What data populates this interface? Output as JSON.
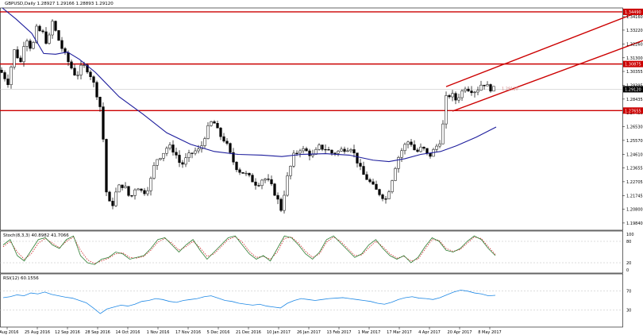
{
  "chart_data": [
    {
      "type": "candlestick",
      "title": "GBPUSD,Daily  1.28927 1.29166 1.28893 1.29120",
      "instrument": "GBPUSD",
      "timeframe": "Daily",
      "ohlc_header": [
        "1.28927",
        "1.29166",
        "1.28893",
        "1.29120"
      ],
      "current_price": "1.29120",
      "ylim": [
        1.1934,
        1.3476
      ],
      "y_ticks": [
        "1.34160",
        "1.33220",
        "1.32260",
        "1.31300",
        "1.30355",
        "1.29395",
        "1.28435",
        "1.27480",
        "1.26530",
        "1.25570",
        "1.24610",
        "1.23655",
        "1.22705",
        "1.21745",
        "1.20800",
        "1.19840"
      ],
      "x_ticks": [
        "9 Aug 2016",
        "25 Aug 2016",
        "12 Sep 2016",
        "28 Sep 2016",
        "14 Oct 2016",
        "1 Nov 2016",
        "17 Nov 2016",
        "5 Dec 2016",
        "21 Dec 2016",
        "10 Jan 2017",
        "26 Jan 2017",
        "13 Feb 2017",
        "1 Mar 2017",
        "17 Mar 2017",
        "4 Apr 2017",
        "20 Apr 2017",
        "8 May 2017"
      ],
      "close_path": [
        [
          0,
          1.3045
        ],
        [
          10,
          1.296
        ],
        [
          18,
          1.318
        ],
        [
          26,
          1.31
        ],
        [
          32,
          1.329
        ],
        [
          40,
          1.318
        ],
        [
          46,
          1.333
        ],
        [
          54,
          1.33
        ],
        [
          60,
          1.322
        ],
        [
          66,
          1.338
        ],
        [
          72,
          1.328
        ],
        [
          80,
          1.317
        ],
        [
          88,
          1.308
        ],
        [
          96,
          1.3
        ],
        [
          104,
          1.308
        ],
        [
          112,
          1.304
        ],
        [
          120,
          1.292
        ],
        [
          128,
          1.275
        ],
        [
          134,
          1.22
        ],
        [
          140,
          1.208
        ],
        [
          148,
          1.223
        ],
        [
          156,
          1.225
        ],
        [
          164,
          1.215
        ],
        [
          172,
          1.225
        ],
        [
          180,
          1.219
        ],
        [
          188,
          1.224
        ],
        [
          196,
          1.242
        ],
        [
          204,
          1.246
        ],
        [
          212,
          1.252
        ],
        [
          220,
          1.248
        ],
        [
          228,
          1.238
        ],
        [
          236,
          1.244
        ],
        [
          244,
          1.248
        ],
        [
          252,
          1.249
        ],
        [
          260,
          1.262
        ],
        [
          268,
          1.27
        ],
        [
          276,
          1.26
        ],
        [
          284,
          1.255
        ],
        [
          292,
          1.243
        ],
        [
          300,
          1.235
        ],
        [
          308,
          1.233
        ],
        [
          316,
          1.229
        ],
        [
          324,
          1.225
        ],
        [
          332,
          1.23
        ],
        [
          340,
          1.226
        ],
        [
          348,
          1.217
        ],
        [
          354,
          1.208
        ],
        [
          362,
          1.23
        ],
        [
          370,
          1.245
        ],
        [
          378,
          1.25
        ],
        [
          386,
          1.248
        ],
        [
          394,
          1.245
        ],
        [
          402,
          1.251
        ],
        [
          410,
          1.25
        ],
        [
          418,
          1.247
        ],
        [
          426,
          1.248
        ],
        [
          434,
          1.25
        ],
        [
          442,
          1.251
        ],
        [
          448,
          1.244
        ],
        [
          456,
          1.233
        ],
        [
          464,
          1.228
        ],
        [
          472,
          1.222
        ],
        [
          480,
          1.218
        ],
        [
          486,
          1.215
        ],
        [
          492,
          1.225
        ],
        [
          500,
          1.242
        ],
        [
          508,
          1.251
        ],
        [
          516,
          1.256
        ],
        [
          524,
          1.247
        ],
        [
          532,
          1.251
        ],
        [
          540,
          1.244
        ],
        [
          548,
          1.25
        ],
        [
          556,
          1.257
        ],
        [
          562,
          1.285
        ],
        [
          568,
          1.288
        ],
        [
          574,
          1.284
        ],
        [
          580,
          1.288
        ],
        [
          586,
          1.293
        ],
        [
          592,
          1.291
        ],
        [
          600,
          1.29
        ],
        [
          608,
          1.296
        ],
        [
          614,
          1.293
        ],
        [
          620,
          1.2912
        ]
      ],
      "moving_average": [
        [
          3,
          1.3476
        ],
        [
          20,
          1.34
        ],
        [
          40,
          1.33
        ],
        [
          55,
          1.316
        ],
        [
          70,
          1.3155
        ],
        [
          85,
          1.317
        ],
        [
          100,
          1.312
        ],
        [
          120,
          1.303
        ],
        [
          150,
          1.286
        ],
        [
          180,
          1.274
        ],
        [
          210,
          1.261
        ],
        [
          240,
          1.253
        ],
        [
          270,
          1.248
        ],
        [
          300,
          1.246
        ],
        [
          330,
          1.2455
        ],
        [
          355,
          1.2445
        ],
        [
          380,
          1.246
        ],
        [
          410,
          1.2465
        ],
        [
          440,
          1.2455
        ],
        [
          470,
          1.242
        ],
        [
          490,
          1.241
        ],
        [
          510,
          1.243
        ],
        [
          530,
          1.246
        ],
        [
          555,
          1.248
        ],
        [
          575,
          1.252
        ],
        [
          600,
          1.258
        ],
        [
          625,
          1.265
        ]
      ],
      "horizontal_levels": [
        {
          "value": 1.3449,
          "label": "1.34490"
        },
        {
          "value": 1.3087,
          "label": "1.30875"
        },
        {
          "value": 1.2764,
          "label": "1.27655"
        }
      ],
      "channel_lines": [
        {
          "from": [
            562,
            1.293
          ],
          "to": [
            810,
            1.346
          ]
        },
        {
          "from": [
            570,
            1.276
          ],
          "to": [
            810,
            1.325
          ]
        }
      ],
      "channel_inner_label": "1.29120"
    },
    {
      "type": "line",
      "title": "Stoch(8,3,3) 40.8982 41.7066",
      "indicator": "Stoch(8,3,3)",
      "values_shown": [
        "40.8982",
        "41.7066"
      ],
      "ylim": [
        0,
        100
      ],
      "y_ticks": [
        "100",
        "80",
        "20",
        "0"
      ],
      "series": [
        {
          "name": "main",
          "style": "solid"
        },
        {
          "name": "signal",
          "style": "dotted"
        }
      ],
      "series_values": [
        70,
        85,
        40,
        25,
        55,
        85,
        90,
        70,
        60,
        85,
        95,
        40,
        20,
        15,
        30,
        35,
        50,
        45,
        30,
        35,
        40,
        60,
        85,
        90,
        70,
        50,
        70,
        85,
        55,
        30,
        50,
        70,
        90,
        95,
        70,
        45,
        30,
        40,
        25,
        60,
        95,
        90,
        70,
        45,
        30,
        50,
        85,
        95,
        75,
        55,
        35,
        45,
        70,
        85,
        60,
        40,
        30,
        40,
        20,
        35,
        65,
        90,
        80,
        55,
        50,
        60,
        80,
        95,
        85,
        60,
        40
      ],
      "series_values_signal": [
        65,
        80,
        50,
        30,
        45,
        75,
        88,
        75,
        62,
        80,
        92,
        55,
        28,
        18,
        25,
        33,
        45,
        48,
        35,
        33,
        38,
        55,
        78,
        88,
        75,
        55,
        65,
        80,
        62,
        38,
        45,
        65,
        85,
        93,
        78,
        52,
        35,
        38,
        30,
        50,
        88,
        92,
        75,
        52,
        35,
        45,
        78,
        92,
        80,
        60,
        40,
        42,
        62,
        80,
        65,
        45,
        33,
        38,
        25,
        30,
        58,
        85,
        83,
        60,
        52,
        57,
        75,
        92,
        88,
        65,
        43
      ]
    },
    {
      "type": "line",
      "title": "RSI(12) 60.1556",
      "indicator": "RSI(12)",
      "values_shown": [
        "60.1556"
      ],
      "ylim": [
        0,
        100
      ],
      "y_ticks": [
        "70",
        "30"
      ],
      "series_values": [
        56,
        58,
        62,
        60,
        66,
        64,
        68,
        63,
        60,
        57,
        55,
        50,
        45,
        34,
        22,
        32,
        36,
        40,
        38,
        42,
        48,
        50,
        54,
        52,
        48,
        46,
        50,
        52,
        54,
        58,
        60,
        55,
        50,
        48,
        44,
        42,
        40,
        42,
        38,
        36,
        34,
        44,
        50,
        54,
        52,
        50,
        52,
        54,
        55,
        56,
        54,
        52,
        50,
        48,
        44,
        42,
        46,
        52,
        56,
        58,
        55,
        54,
        52,
        56,
        62,
        68,
        72,
        70,
        66,
        64,
        60,
        61
      ]
    }
  ],
  "colors": {
    "candle_up": "#ffffff",
    "candle_down": "#000000",
    "moving_average": "#1c1c9c",
    "level_line": "#cc0000",
    "channel_line": "#cc0000",
    "stoch_main": "#2e7d32",
    "stoch_signal": "#cc2222",
    "rsi": "#1e88e5"
  }
}
